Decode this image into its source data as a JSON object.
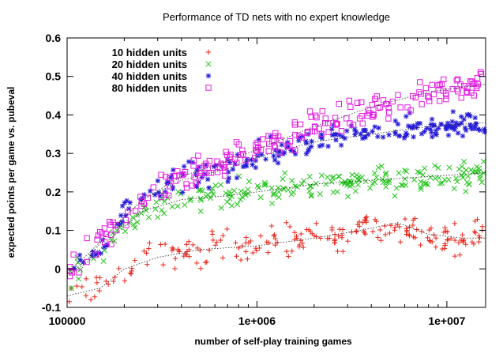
{
  "chart_data": {
    "type": "scatter",
    "title": "Performance of TD nets with no expert knowledge",
    "xlabel": "number of self-play training games",
    "ylabel": "expected points per game vs. pubeval",
    "x_scale": "log",
    "xlim": [
      100000,
      16000000
    ],
    "ylim": [
      -0.1,
      0.6
    ],
    "x_ticks": [
      100000,
      1000000,
      10000000
    ],
    "x_tick_labels": [
      "100000",
      "1e+006",
      "1e+007"
    ],
    "y_ticks": [
      -0.1,
      0,
      0.1,
      0.2,
      0.3,
      0.4,
      0.5,
      0.6
    ],
    "y_tick_labels": [
      "-0.1",
      "0",
      "0.1",
      "0.2",
      "0.3",
      "0.4",
      "0.5",
      "0.6"
    ],
    "grid": false,
    "legend_position": "top-left",
    "series": [
      {
        "name": "10 hidden units",
        "marker": "plus",
        "color": "#e8251a",
        "trend": [
          [
            100000,
            -0.07
          ],
          [
            150000,
            -0.05
          ],
          [
            200000,
            0.0
          ],
          [
            300000,
            0.03
          ],
          [
            500000,
            0.05
          ],
          [
            1000000,
            0.06
          ],
          [
            2000000,
            0.08
          ],
          [
            3500000,
            0.1
          ],
          [
            5500000,
            0.12
          ],
          [
            8000000,
            0.09
          ],
          [
            12000000,
            0.08
          ],
          [
            16000000,
            0.08
          ]
        ],
        "spread": 0.03
      },
      {
        "name": "20 hidden units",
        "marker": "cross",
        "color": "#22c41a",
        "trend": [
          [
            100000,
            -0.02
          ],
          [
            130000,
            0.02
          ],
          [
            170000,
            0.08
          ],
          [
            250000,
            0.15
          ],
          [
            400000,
            0.18
          ],
          [
            700000,
            0.19
          ],
          [
            1000000,
            0.2
          ],
          [
            2000000,
            0.22
          ],
          [
            4000000,
            0.23
          ],
          [
            8000000,
            0.24
          ],
          [
            16000000,
            0.25
          ]
        ],
        "spread": 0.025
      },
      {
        "name": "40 hidden units",
        "marker": "star",
        "color": "#2319d8",
        "trend": [
          [
            100000,
            -0.02
          ],
          [
            130000,
            0.03
          ],
          [
            170000,
            0.1
          ],
          [
            250000,
            0.18
          ],
          [
            400000,
            0.23
          ],
          [
            700000,
            0.26
          ],
          [
            1000000,
            0.29
          ],
          [
            2000000,
            0.33
          ],
          [
            4000000,
            0.35
          ],
          [
            8000000,
            0.37
          ],
          [
            16000000,
            0.38
          ]
        ],
        "spread": 0.025
      },
      {
        "name": "80 hidden units",
        "marker": "square",
        "color": "#e21ce2",
        "trend": [
          [
            100000,
            -0.01
          ],
          [
            130000,
            0.04
          ],
          [
            170000,
            0.1
          ],
          [
            250000,
            0.18
          ],
          [
            400000,
            0.24
          ],
          [
            700000,
            0.28
          ],
          [
            1000000,
            0.31
          ],
          [
            2000000,
            0.37
          ],
          [
            4000000,
            0.42
          ],
          [
            8000000,
            0.46
          ],
          [
            16000000,
            0.48
          ]
        ],
        "spread": 0.025
      }
    ]
  }
}
